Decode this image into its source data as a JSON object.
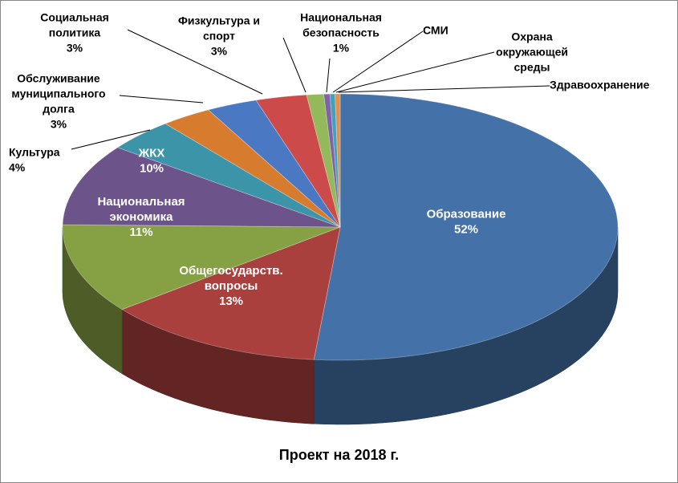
{
  "chart_data": {
    "type": "pie",
    "title": "Проект на 2018 г.",
    "style": "3d",
    "slices": [
      {
        "name": "Образование",
        "lines": [
          "Образование"
        ],
        "value": 52,
        "value_label": "52%",
        "color": "#4472a8"
      },
      {
        "name": "Общегосударств. вопросы",
        "lines": [
          "Общегосударств.",
          "вопросы"
        ],
        "value": 13,
        "value_label": "13%",
        "color": "#a9403e"
      },
      {
        "name": "Национальная экономика",
        "lines": [
          "Национальная",
          "экономика"
        ],
        "value": 11,
        "value_label": "11%",
        "color": "#86a044"
      },
      {
        "name": "ЖКХ",
        "lines": [
          "ЖКХ"
        ],
        "value": 10,
        "value_label": "10%",
        "color": "#6c538a"
      },
      {
        "name": "Культура",
        "lines": [
          "Культура"
        ],
        "value": 4,
        "value_label": "4%",
        "color": "#3c94a9"
      },
      {
        "name": "Обслуживание муниципального долга",
        "lines": [
          "Обслуживание",
          "муниципального",
          "долга"
        ],
        "value": 3,
        "value_label": "3%",
        "color": "#d77b2f"
      },
      {
        "name": "Социальная политика",
        "lines": [
          "Социальная",
          "политика"
        ],
        "value": 3,
        "value_label": "3%",
        "color": "#4b78c2"
      },
      {
        "name": "Физкультура и спорт",
        "lines": [
          "Физкультура и",
          "спорт"
        ],
        "value": 3,
        "value_label": "3%",
        "color": "#cd4a4a"
      },
      {
        "name": "Национальная безопасность",
        "lines": [
          "Национальная",
          "безопасность"
        ],
        "value": 1,
        "value_label": "1%",
        "color": "#93b95a"
      },
      {
        "name": "СМИ",
        "lines": [
          "СМИ"
        ],
        "value": 0.35,
        "value_label": "",
        "color": "#7e64a6"
      },
      {
        "name": "Охрана окружающей среды",
        "lines": [
          "Охрана",
          "окружающей",
          "среды"
        ],
        "value": 0.3,
        "value_label": "",
        "color": "#43a2bb"
      },
      {
        "name": "Здравоохранение",
        "lines": [
          "Здравоохранение"
        ],
        "value": 0.3,
        "value_label": "",
        "color": "#e5904a"
      }
    ]
  }
}
